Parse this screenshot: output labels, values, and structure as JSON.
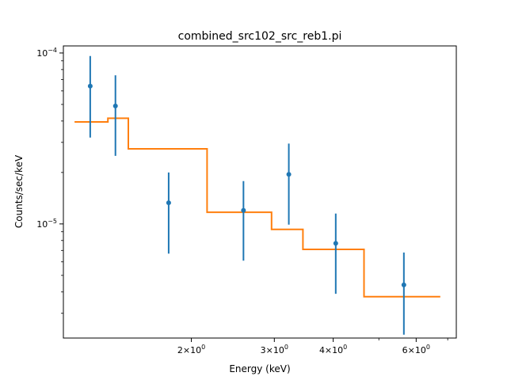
{
  "chart_data": {
    "type": "scatter",
    "title": "combined_src102_src_reb1.pi",
    "xlabel": "Energy (keV)",
    "ylabel": "Counts/sec/keV",
    "xscale": "log",
    "yscale": "log",
    "xlim": [
      1.07,
      7.3
    ],
    "ylim": [
      2.15e-06,
      0.00011
    ],
    "grid": false,
    "x_major_ticks": [
      {
        "value": 2,
        "mantissa": "2",
        "base": "10",
        "exp": "0"
      },
      {
        "value": 3,
        "mantissa": "3",
        "base": "10",
        "exp": "0"
      },
      {
        "value": 4,
        "mantissa": "4",
        "base": "10",
        "exp": "0"
      },
      {
        "value": 6,
        "mantissa": "6",
        "base": "10",
        "exp": "0"
      }
    ],
    "x_minor_ticks": [
      5,
      7
    ],
    "y_major_ticks": [
      {
        "value": 1e-05,
        "base": "10",
        "exp": "−5"
      },
      {
        "value": 0.0001,
        "base": "10",
        "exp": "−4"
      }
    ],
    "y_minor_ticks": [
      3e-06,
      4e-06,
      5e-06,
      6e-06,
      7e-06,
      8e-06,
      9e-06,
      2e-05,
      3e-05,
      4e-05,
      5e-05,
      6e-05,
      7e-05,
      8e-05,
      9e-05
    ],
    "series": [
      {
        "kind": "data",
        "color": "#1f77b4",
        "points": [
          {
            "x": 1.22,
            "y": 6.4e-05,
            "ylo": 3.2e-05,
            "yhi": 9.6e-05
          },
          {
            "x": 1.38,
            "y": 4.9e-05,
            "ylo": 2.5e-05,
            "yhi": 7.4e-05
          },
          {
            "x": 1.79,
            "y": 1.33e-05,
            "ylo": 6.7e-06,
            "yhi": 2e-05
          },
          {
            "x": 2.58,
            "y": 1.2e-05,
            "ylo": 6.1e-06,
            "yhi": 1.78e-05
          },
          {
            "x": 3.22,
            "y": 1.95e-05,
            "ylo": 9.9e-06,
            "yhi": 2.95e-05
          },
          {
            "x": 4.05,
            "y": 7.7e-06,
            "ylo": 3.9e-06,
            "yhi": 1.15e-05
          },
          {
            "x": 5.65,
            "y": 4.4e-06,
            "ylo": 2.25e-06,
            "yhi": 6.8e-06
          }
        ]
      },
      {
        "kind": "model",
        "color": "#ff7f0e",
        "step_edges": [
          1.13,
          1.33,
          1.47,
          2.16,
          2.96,
          3.45,
          4.65,
          6.75
        ],
        "step_values": [
          3.95e-05,
          4.15e-05,
          2.75e-05,
          1.17e-05,
          9.3e-06,
          7.1e-06,
          3.75e-06
        ]
      }
    ]
  }
}
